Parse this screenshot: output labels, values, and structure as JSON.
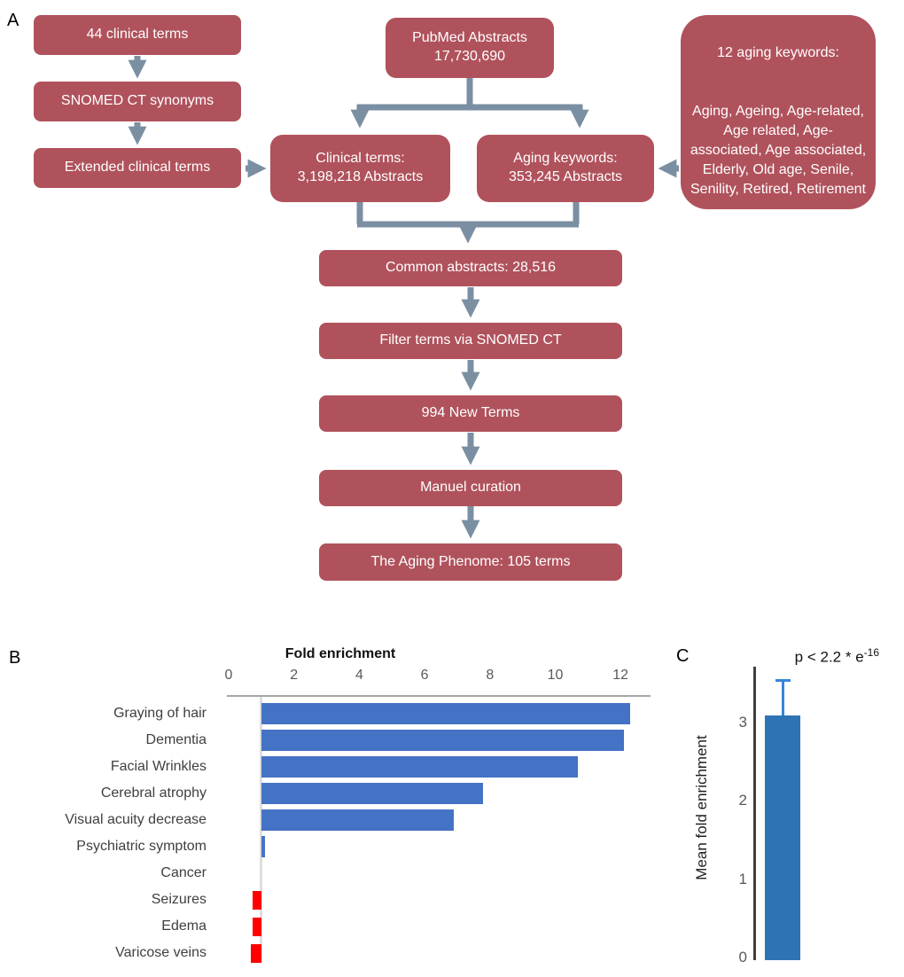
{
  "colors": {
    "box_fill": "#b0525c",
    "arrow": "#7b8fa3",
    "bar_blue": "#4472c4",
    "bar_red": "#ff0000",
    "mean_bar_blue": "#2e74b5",
    "error_bar_blue": "#3585d8"
  },
  "panel_a": {
    "label": "A",
    "boxes": {
      "terms44": "44  clinical terms",
      "snomed_synonyms": "SNOMED CT synonyms",
      "extended_terms": "Extended clinical terms",
      "pubmed": "PubMed Abstracts\n17,730,690",
      "clinical_terms": "Clinical terms:\n3,198,218 Abstracts",
      "aging_keywords": "Aging keywords:\n353,245 Abstracts",
      "aging_keywords_list_title": "12 aging keywords:",
      "aging_keywords_list": "Aging, Ageing, Age-related, Age related, Age-associated, Age associated, Elderly, Old age, Senile, Senility, Retired, Retirement",
      "common_abstracts": "Common abstracts: 28,516",
      "filter_terms": "Filter terms via SNOMED CT",
      "new_terms": "994 New Terms",
      "manual_curation": "Manuel curation",
      "aging_phenome": "The Aging Phenome: 105 terms"
    }
  },
  "panel_b": {
    "label": "B"
  },
  "panel_c": {
    "label": "C",
    "p_value_base": "p < 2.2 * e",
    "p_value_exponent": "-16",
    "ylabel": "Mean fold enrichment"
  },
  "chart_data": [
    {
      "id": "fold-enrichment-by-term",
      "type": "bar",
      "orientation": "horizontal",
      "title": "Fold enrichment",
      "categories": [
        "Graying of hair",
        "Dementia",
        "Facial Wrinkles",
        "Cerebral atrophy",
        "Visual acuity decrease",
        "Psychiatric symptom",
        "Cancer",
        "Seizures",
        "Edema",
        "Varicose veins"
      ],
      "values": [
        12.3,
        12.1,
        10.7,
        7.8,
        6.9,
        1.1,
        1.0,
        0.73,
        0.73,
        0.67
      ],
      "baseline": 1,
      "xticks": [
        0,
        2,
        4,
        6,
        8,
        10,
        12
      ],
      "xlim": [
        0,
        12.9
      ],
      "grid": false,
      "legend": null,
      "color_rule": "blue bar if fold enrichment > 1 (enriched), red bar if < 1 (depleted); bars pivot at 1"
    },
    {
      "id": "mean-fold-enrichment",
      "type": "bar",
      "orientation": "vertical",
      "title": "",
      "annotation": "p < 2.2 * e^-16",
      "ylabel": "Mean fold enrichment",
      "series": [
        {
          "name": "Mean fold enrichment",
          "values": [
            3.1
          ],
          "error_plus": [
            0.45
          ]
        }
      ],
      "yticks": [
        0,
        1,
        2,
        3
      ],
      "ylim": [
        0,
        3.75
      ],
      "grid": false
    }
  ]
}
